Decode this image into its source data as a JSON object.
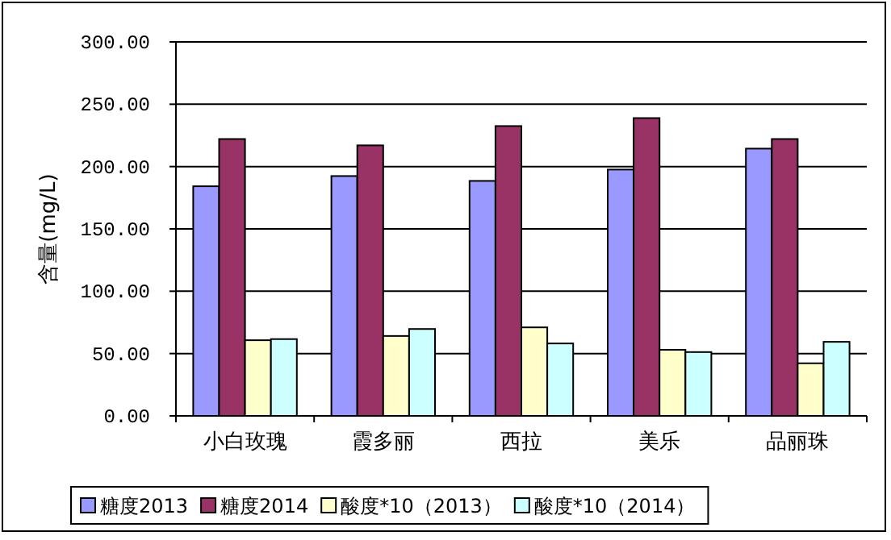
{
  "chart_data": {
    "type": "bar",
    "ylabel": "含量(mg/L)",
    "categories": [
      "小白玫瑰",
      "霞多丽",
      "西拉",
      "美乐",
      "品丽珠"
    ],
    "series": [
      {
        "name": "糖度2013",
        "color": "#9999ff",
        "values": [
          184.2,
          192.4,
          188.5,
          197.6,
          214.4
        ]
      },
      {
        "name": "糖度2014",
        "color": "#993366",
        "values": [
          222.1,
          217.0,
          232.5,
          238.9,
          222.1
        ]
      },
      {
        "name": "酸度*10（2013）",
        "color": "#ffffcc",
        "values": [
          60.7,
          64.1,
          71.0,
          53.0,
          42.2
        ]
      },
      {
        "name": "酸度*10（2014）",
        "color": "#ccffff",
        "values": [
          61.6,
          69.7,
          58.1,
          51.2,
          59.4
        ]
      }
    ],
    "ylim": [
      0,
      300
    ],
    "yticks": [
      {
        "value": 0,
        "label": "0.00"
      },
      {
        "value": 50,
        "label": "50.00"
      },
      {
        "value": 100,
        "label": "100.00"
      },
      {
        "value": 150,
        "label": "150.00"
      },
      {
        "value": 200,
        "label": "200.00"
      },
      {
        "value": 250,
        "label": "250.00"
      },
      {
        "value": 300,
        "label": "300.00"
      }
    ],
    "grid": "y",
    "legend": "bottom"
  }
}
